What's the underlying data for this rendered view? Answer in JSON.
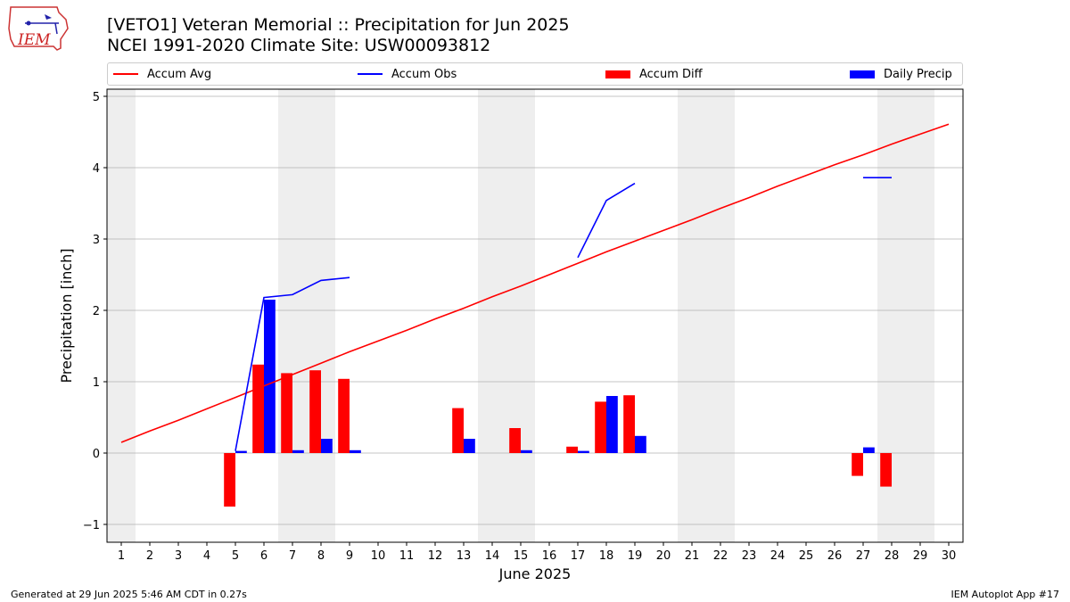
{
  "title_line1": "[VETO1] Veteran Memorial :: Precipitation for Jun 2025",
  "title_line2": "NCEI 1991-2020 Climate Site: USW00093812",
  "logo_text": "IEM",
  "footer_left": "Generated at 29 Jun 2025 5:46 AM CDT in 0.27s",
  "footer_right": "IEM Autoplot App #17",
  "colors": {
    "avg": "#ff0000",
    "obs": "#0000ff",
    "diff": "#ff0000",
    "daily": "#0000ff",
    "weekend": "#eeeeee",
    "grid": "#b0b0b0"
  },
  "chart_data": {
    "type": "bar",
    "xlabel": "June 2025",
    "ylabel": "Precipitation [inch]",
    "xlim": [
      0.5,
      30.5
    ],
    "ylim": [
      -1.25,
      5.1
    ],
    "x_ticks": [
      1,
      2,
      3,
      4,
      5,
      6,
      7,
      8,
      9,
      10,
      11,
      12,
      13,
      14,
      15,
      16,
      17,
      18,
      19,
      20,
      21,
      22,
      23,
      24,
      25,
      26,
      27,
      28,
      29,
      30
    ],
    "y_ticks": [
      -1,
      0,
      1,
      2,
      3,
      4,
      5
    ],
    "grid": "y",
    "legend": "top",
    "weekend_spans": [
      [
        0.5,
        1.5
      ],
      [
        6.5,
        8.5
      ],
      [
        13.5,
        15.5
      ],
      [
        20.5,
        22.5
      ],
      [
        27.5,
        29.5
      ]
    ],
    "legend_entries": [
      "Accum Avg",
      "Accum Obs",
      "Accum Diff",
      "Daily Precip"
    ],
    "series": [
      {
        "name": "Accum Avg",
        "kind": "line",
        "x": [
          1,
          2,
          3,
          4,
          5,
          6,
          7,
          8,
          9,
          10,
          11,
          12,
          13,
          14,
          15,
          16,
          17,
          18,
          19,
          20,
          21,
          22,
          23,
          24,
          25,
          26,
          27,
          28,
          29,
          30
        ],
        "values": [
          0.15,
          0.31,
          0.46,
          0.62,
          0.78,
          0.94,
          1.1,
          1.26,
          1.42,
          1.57,
          1.72,
          1.88,
          2.03,
          2.19,
          2.34,
          2.5,
          2.66,
          2.82,
          2.97,
          3.12,
          3.27,
          3.43,
          3.58,
          3.74,
          3.89,
          4.04,
          4.18,
          4.33,
          4.47,
          4.61
        ]
      },
      {
        "name": "Accum Obs",
        "kind": "line",
        "segments": [
          {
            "x": [
              5,
              6,
              7,
              8,
              9
            ],
            "values": [
              0.03,
              2.18,
              2.22,
              2.42,
              2.46
            ]
          },
          {
            "x": [
              17,
              18,
              19
            ],
            "values": [
              2.74,
              3.54,
              3.78
            ]
          },
          {
            "x": [
              27,
              28
            ],
            "values": [
              3.86,
              3.86
            ]
          }
        ]
      },
      {
        "name": "Accum Diff",
        "kind": "bar",
        "x": [
          5,
          6,
          7,
          8,
          9,
          13,
          15,
          17,
          18,
          19,
          27,
          28
        ],
        "values": [
          -0.75,
          1.24,
          1.12,
          1.16,
          1.04,
          0.63,
          0.35,
          0.09,
          0.72,
          0.81,
          -0.32,
          -0.47
        ]
      },
      {
        "name": "Daily Precip",
        "kind": "bar",
        "x": [
          5,
          6,
          7,
          8,
          9,
          13,
          15,
          17,
          18,
          19,
          27
        ],
        "values": [
          0.03,
          2.15,
          0.04,
          0.2,
          0.04,
          0.2,
          0.04,
          0.03,
          0.8,
          0.24,
          0.08
        ]
      }
    ]
  }
}
